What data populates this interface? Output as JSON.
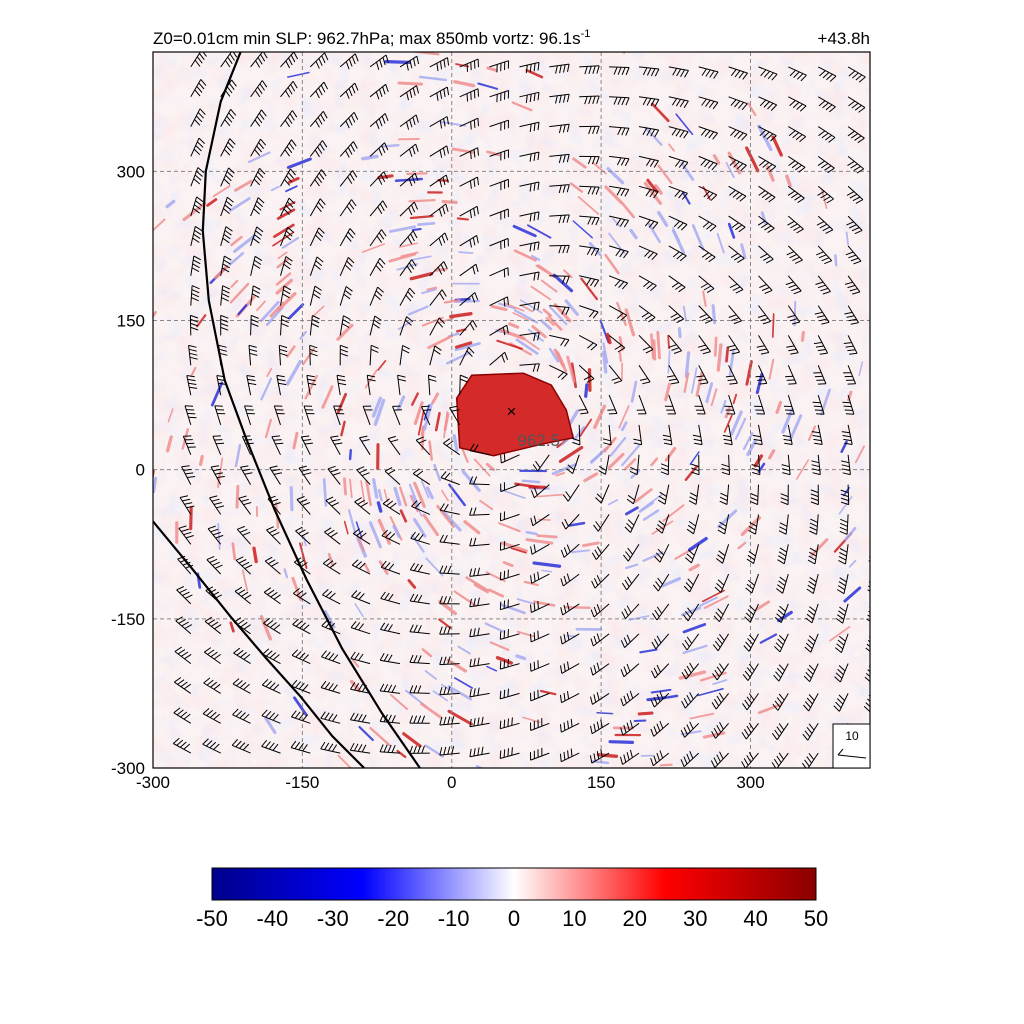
{
  "chart_data": {
    "type": "heatmap",
    "title_left": "Z0=0.01cm  min SLP: 962.7hPa; max 850mb vortz:  96.1s",
    "title_left_exponent": "-1",
    "title_right": "+43.8h",
    "xlim": [
      -300,
      420
    ],
    "ylim": [
      -300,
      420
    ],
    "x_ticks": [
      -300,
      -150,
      0,
      150,
      300
    ],
    "y_ticks": [
      -300,
      -150,
      0,
      150,
      300
    ],
    "x_tick_labels": [
      "-300",
      "-150",
      "0",
      "150",
      "300"
    ],
    "y_tick_labels": [
      "-300",
      "-150",
      "0",
      "150",
      "300"
    ],
    "grid": "dashed",
    "center_marker": {
      "x": 60,
      "y": 60,
      "symbol": "×"
    },
    "contour_label": {
      "text": "962.5",
      "x": 82,
      "y": 24
    },
    "coastlines": [
      {
        "name": "",
        "points": [
          [
            -212,
            420
          ],
          [
            -232,
            370
          ],
          [
            -247,
            300
          ],
          [
            -250,
            240
          ],
          [
            -244,
            170
          ],
          [
            -228,
            90
          ],
          [
            -206,
            30
          ],
          [
            -178,
            -40
          ],
          [
            -146,
            -110
          ],
          [
            -110,
            -180
          ],
          [
            -70,
            -245
          ],
          [
            -32,
            -300
          ]
        ]
      },
      {
        "name": "",
        "points": [
          [
            -300,
            -52
          ],
          [
            -262,
            -98
          ],
          [
            -222,
            -148
          ],
          [
            -186,
            -190
          ],
          [
            -152,
            -228
          ],
          [
            -120,
            -268
          ],
          [
            -88,
            -300
          ]
        ]
      }
    ],
    "eye_region": {
      "points": [
        [
          5,
          72
        ],
        [
          20,
          95
        ],
        [
          72,
          97
        ],
        [
          100,
          85
        ],
        [
          115,
          60
        ],
        [
          122,
          32
        ],
        [
          92,
          26
        ],
        [
          42,
          14
        ],
        [
          8,
          22
        ]
      ],
      "value": 40
    },
    "scale_key": {
      "label": "10"
    },
    "colorbar": {
      "min": -50,
      "max": 50,
      "ticks": [
        "-50",
        "-40",
        "-30",
        "-20",
        "-10",
        "0",
        "10",
        "20",
        "30",
        "40",
        "50"
      ],
      "colors": [
        "#00008b",
        "#0000ff",
        "#ffffff",
        "#ff0000",
        "#8b0000"
      ]
    }
  }
}
